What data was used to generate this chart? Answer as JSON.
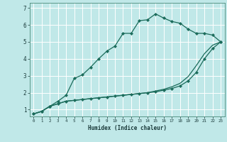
{
  "title": "",
  "xlabel": "Humidex (Indice chaleur)",
  "bg_color": "#c0e8e8",
  "grid_color": "#ffffff",
  "line_color": "#1a6b5a",
  "xlim": [
    -0.5,
    23.5
  ],
  "ylim": [
    0.6,
    7.3
  ],
  "xticks": [
    0,
    1,
    2,
    3,
    4,
    5,
    6,
    7,
    8,
    9,
    10,
    11,
    12,
    13,
    14,
    15,
    16,
    17,
    18,
    19,
    20,
    21,
    22,
    23
  ],
  "yticks": [
    1,
    2,
    3,
    4,
    5,
    6,
    7
  ],
  "series": [
    {
      "x": [
        0,
        1,
        2,
        3,
        4,
        5,
        6,
        7,
        8,
        9,
        10,
        11,
        12,
        13,
        14,
        15,
        16,
        17,
        18,
        19,
        20,
        21,
        22,
        23
      ],
      "y": [
        0.75,
        0.9,
        1.2,
        1.35,
        1.5,
        1.55,
        1.6,
        1.65,
        1.7,
        1.75,
        1.8,
        1.85,
        1.9,
        1.95,
        2.0,
        2.05,
        2.15,
        2.25,
        2.4,
        2.7,
        3.2,
        4.0,
        4.6,
        5.0
      ],
      "marker": true
    },
    {
      "x": [
        0,
        1,
        2,
        3,
        4,
        5,
        6,
        7,
        8,
        9,
        10,
        11,
        12,
        13,
        14,
        15,
        16,
        17,
        18,
        19,
        20,
        21,
        22,
        23
      ],
      "y": [
        0.75,
        0.9,
        1.2,
        1.35,
        1.5,
        1.55,
        1.6,
        1.65,
        1.7,
        1.75,
        1.8,
        1.85,
        1.9,
        1.95,
        2.0,
        2.1,
        2.2,
        2.35,
        2.55,
        2.95,
        3.6,
        4.3,
        4.8,
        5.0
      ],
      "marker": false
    },
    {
      "x": [
        0,
        1,
        2,
        3,
        4,
        5,
        6,
        7,
        8,
        9,
        10,
        11,
        12,
        13,
        14,
        15,
        16,
        17,
        18,
        19,
        20,
        21,
        22,
        23
      ],
      "y": [
        0.75,
        0.9,
        1.2,
        1.5,
        1.85,
        2.85,
        3.05,
        3.5,
        4.0,
        4.45,
        4.75,
        5.5,
        5.5,
        6.25,
        6.3,
        6.65,
        6.4,
        6.2,
        6.1,
        5.75,
        5.5,
        5.5,
        5.4,
        5.0
      ],
      "marker": true
    }
  ]
}
